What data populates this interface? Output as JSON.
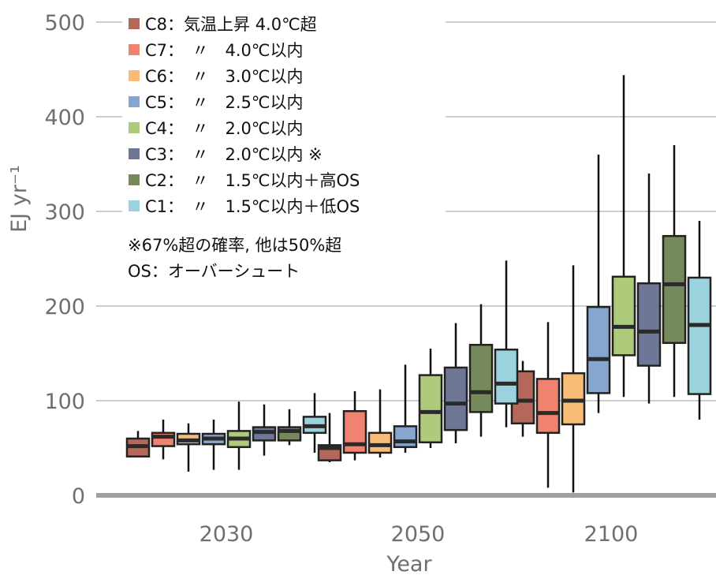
{
  "chart_data": {
    "type": "box",
    "title": "",
    "xlabel": "Year",
    "ylabel": "EJ yr⁻¹",
    "ylim": [
      0,
      500
    ],
    "yticks": [
      "0",
      "100",
      "200",
      "300",
      "400",
      "500"
    ],
    "categories": [
      "2030",
      "2050",
      "2100"
    ],
    "grid": "horizontal",
    "legend_position": "top-left",
    "series": [
      {
        "name": "C8：気温上昇 4.0℃超",
        "color": "#B5685A",
        "boxes": [
          {
            "min": 40,
            "q1": 41,
            "median": 52,
            "q3": 60,
            "max": 68
          },
          {
            "min": 35,
            "q1": 37,
            "median": 50,
            "q3": 53,
            "max": 87
          },
          {
            "min": 62,
            "q1": 76,
            "median": 100,
            "q3": 131,
            "max": 142
          }
        ]
      },
      {
        "name": "C7：　〃　4.0℃以内",
        "color": "#EF8370",
        "boxes": [
          {
            "min": 38,
            "q1": 52,
            "median": 62,
            "q3": 66,
            "max": 80
          },
          {
            "min": 37,
            "q1": 45,
            "median": 54,
            "q3": 89,
            "max": 110
          },
          {
            "min": 8,
            "q1": 66,
            "median": 87,
            "q3": 123,
            "max": 183
          }
        ]
      },
      {
        "name": "C6：　〃　3.0℃以内",
        "color": "#F8BC78",
        "boxes": [
          {
            "min": 25,
            "q1": 54,
            "median": 58,
            "q3": 65,
            "max": 76
          },
          {
            "min": 40,
            "q1": 45,
            "median": 53,
            "q3": 66,
            "max": 112
          },
          {
            "min": 3,
            "q1": 75,
            "median": 100,
            "q3": 129,
            "max": 243
          }
        ]
      },
      {
        "name": "C5：　〃　2.5℃以内",
        "color": "#86A5CF",
        "boxes": [
          {
            "min": 27,
            "q1": 54,
            "median": 60,
            "q3": 65,
            "max": 80
          },
          {
            "min": 45,
            "q1": 51,
            "median": 57,
            "q3": 73,
            "max": 138
          },
          {
            "min": 87,
            "q1": 108,
            "median": 144,
            "q3": 199,
            "max": 360
          }
        ]
      },
      {
        "name": "C4：　〃　2.0℃以内",
        "color": "#AECB7B",
        "boxes": [
          {
            "min": 27,
            "q1": 51,
            "median": 60,
            "q3": 68,
            "max": 99
          },
          {
            "min": 50,
            "q1": 56,
            "median": 88,
            "q3": 127,
            "max": 155
          },
          {
            "min": 104,
            "q1": 148,
            "median": 178,
            "q3": 231,
            "max": 444
          }
        ]
      },
      {
        "name": "C3：　〃　2.0℃以内 ※",
        "color": "#6E7795",
        "boxes": [
          {
            "min": 42,
            "q1": 58,
            "median": 67,
            "q3": 72,
            "max": 96
          },
          {
            "min": 55,
            "q1": 69,
            "median": 97,
            "q3": 135,
            "max": 182
          },
          {
            "min": 97,
            "q1": 137,
            "median": 173,
            "q3": 224,
            "max": 340
          }
        ]
      },
      {
        "name": "C2：　〃　1.5℃以内＋高OS",
        "color": "#76895A",
        "boxes": [
          {
            "min": 53,
            "q1": 58,
            "median": 68,
            "q3": 72,
            "max": 91
          },
          {
            "min": 62,
            "q1": 88,
            "median": 109,
            "q3": 159,
            "max": 202
          },
          {
            "min": 104,
            "q1": 161,
            "median": 223,
            "q3": 274,
            "max": 370
          }
        ]
      },
      {
        "name": "C1：　〃　1.5℃以内＋低OS",
        "color": "#9AD3DE",
        "boxes": [
          {
            "min": 45,
            "q1": 66,
            "median": 73,
            "q3": 83,
            "max": 108
          },
          {
            "min": 72,
            "q1": 97,
            "median": 118,
            "q3": 154,
            "max": 248
          },
          {
            "min": 80,
            "q1": 107,
            "median": 180,
            "q3": 230,
            "max": 290
          }
        ]
      }
    ],
    "notes": [
      "※67%超の確率, 他は50%超",
      "OS：オーバーシュート"
    ]
  }
}
